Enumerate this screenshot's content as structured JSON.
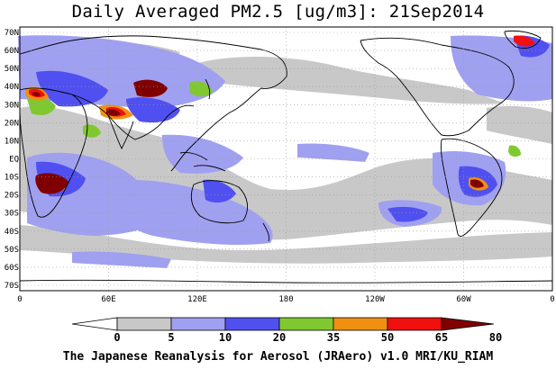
{
  "title": "Daily Averaged PM2.5 [ug/m3]: 21Sep2014",
  "footer": "The Japanese Reanalysis for Aerosol (JRAero) v1.0 MRI/KU_RIAM",
  "lat_labels": [
    "70N",
    "60N",
    "50N",
    "40N",
    "30N",
    "20N",
    "10N",
    "EQ",
    "10S",
    "20S",
    "30S",
    "40S",
    "50S",
    "60S",
    "70S"
  ],
  "lon_labels": [
    "0",
    "60E",
    "120E",
    "180",
    "120W",
    "60W",
    "0"
  ],
  "colorbar": {
    "tick_labels": [
      "0",
      "5",
      "10",
      "20",
      "35",
      "50",
      "65",
      "80"
    ],
    "colors": [
      "#ffffff",
      "#c8c8c8",
      "#a0a0f0",
      "#5050f0",
      "#80c830",
      "#f09010",
      "#f01010",
      "#800000"
    ]
  },
  "palette": {
    "ocean": "#ffffff",
    "coast": "#000000",
    "grid": "#999999"
  }
}
